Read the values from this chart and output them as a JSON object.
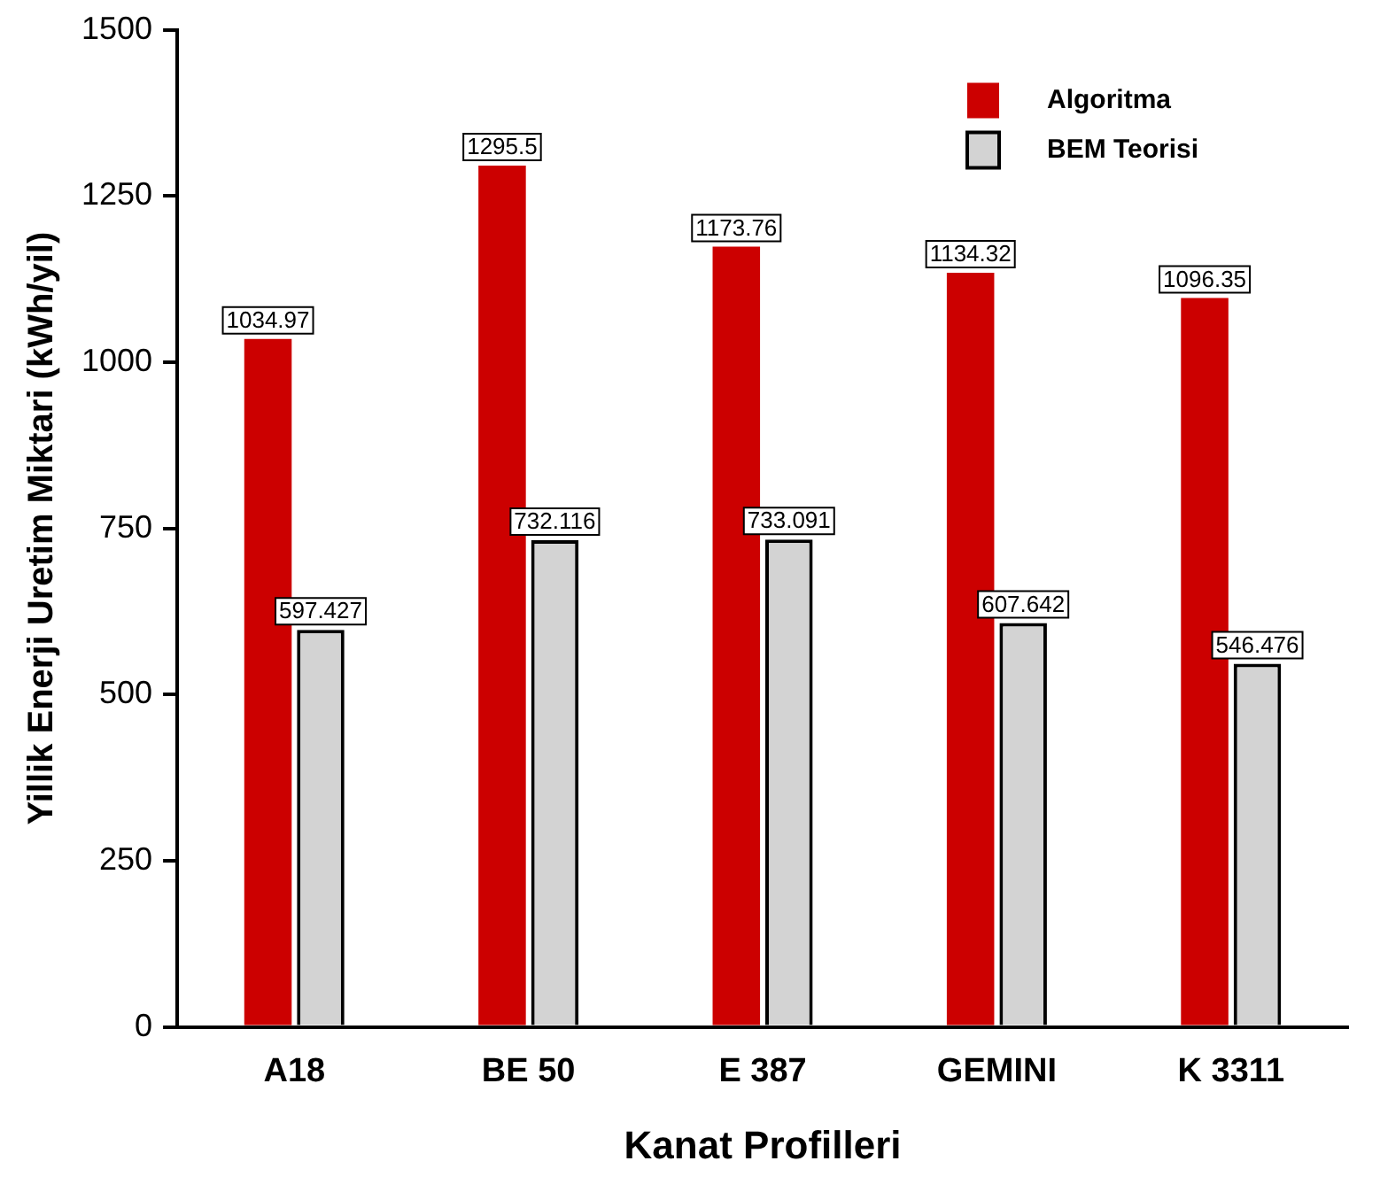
{
  "chart_data": {
    "type": "bar",
    "xlabel": "Kanat Profilleri",
    "ylabel": "Yillik Enerji Uretim Miktari (kWh/yil)",
    "categories": [
      "A18",
      "BE 50",
      "E 387",
      "GEMINI",
      "K 3311"
    ],
    "series": [
      {
        "name": "Algoritma",
        "color": "#cc0000",
        "values": [
          1034.97,
          1295.5,
          1173.76,
          1134.32,
          1096.35
        ]
      },
      {
        "name": "BEM Teorisi",
        "color": "#d3d3d3",
        "values": [
          597.427,
          732.116,
          733.091,
          607.642,
          546.476
        ]
      }
    ],
    "ylim": [
      0,
      1500
    ],
    "yticks": [
      0,
      250,
      500,
      750,
      1000,
      1250,
      1500
    ],
    "grid": false,
    "legend": "top right",
    "data_labels": true
  }
}
